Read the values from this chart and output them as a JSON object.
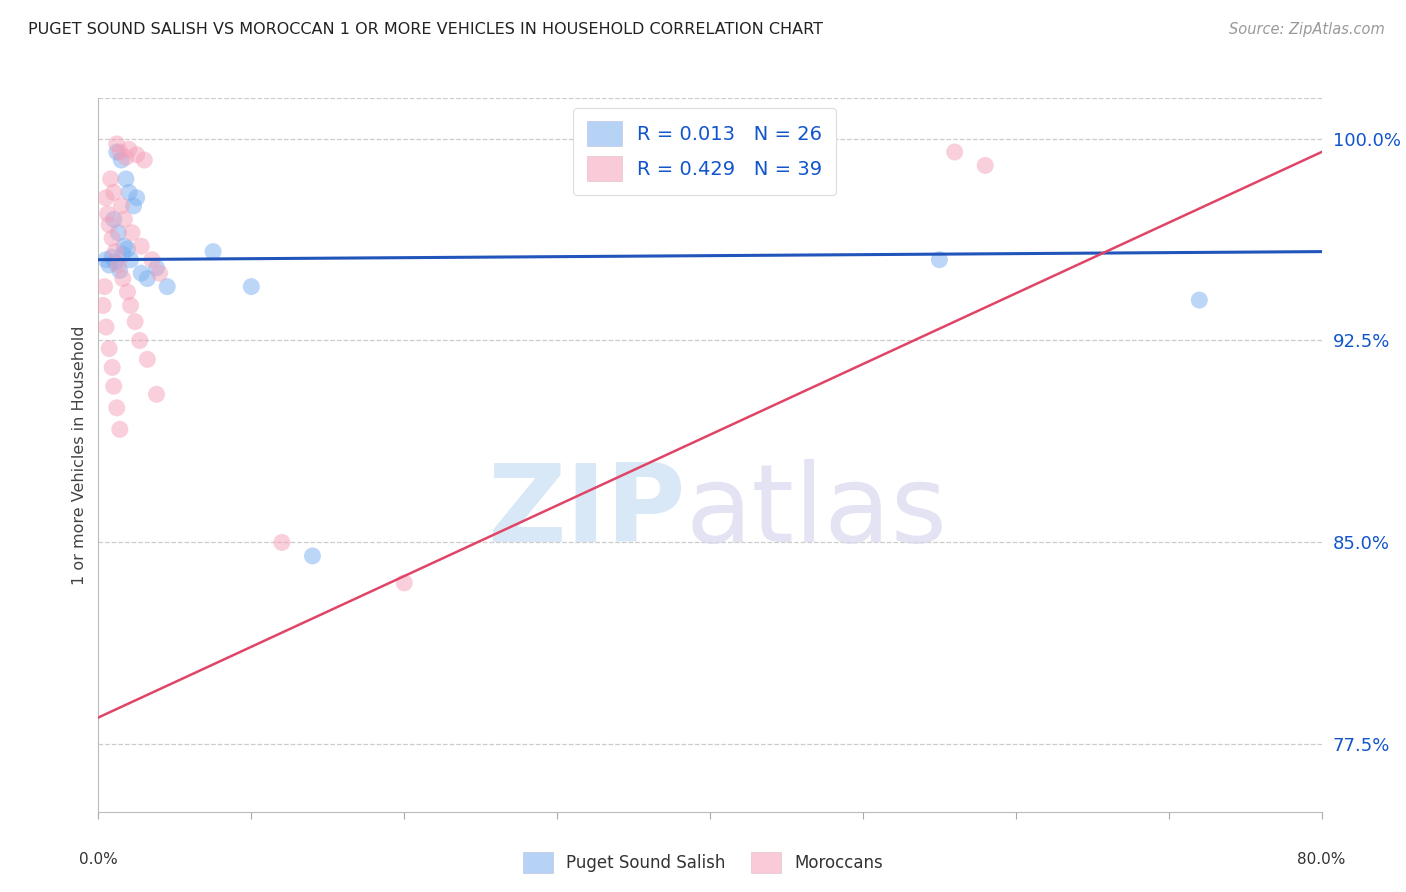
{
  "title": "PUGET SOUND SALISH VS MOROCCAN 1 OR MORE VEHICLES IN HOUSEHOLD CORRELATION CHART",
  "source": "Source: ZipAtlas.com",
  "ylabel": "1 or more Vehicles in Household",
  "xlim": [
    0.0,
    80.0
  ],
  "ylim": [
    75.0,
    101.5
  ],
  "yticks": [
    77.5,
    85.0,
    92.5,
    100.0
  ],
  "ytick_labels": [
    "77.5%",
    "85.0%",
    "92.5%",
    "100.0%"
  ],
  "background_color": "#ffffff",
  "grid_color": "#cccccc",
  "blue_color": "#7aaff0",
  "pink_color": "#f5a0b8",
  "blue_line_color": "#2255bb",
  "pink_line_color": "#e04466",
  "R_blue": 0.013,
  "N_blue": 26,
  "R_pink": 0.429,
  "N_pink": 39,
  "legend_text_color": "#1155cc",
  "blue_scatter_x": [
    1.2,
    1.5,
    1.8,
    2.0,
    2.3,
    2.5,
    1.0,
    1.3,
    1.7,
    2.1,
    2.8,
    3.2,
    3.8,
    4.5,
    7.5,
    10.0,
    0.5,
    0.7,
    0.9,
    1.1,
    1.4,
    1.6,
    1.9,
    55.0,
    72.0,
    14.0
  ],
  "blue_scatter_y": [
    99.5,
    99.2,
    98.5,
    98.0,
    97.5,
    97.8,
    97.0,
    96.5,
    96.0,
    95.5,
    95.0,
    94.8,
    95.2,
    94.5,
    95.8,
    94.5,
    95.5,
    95.3,
    95.6,
    95.4,
    95.1,
    95.7,
    95.9,
    95.5,
    94.0,
    84.5
  ],
  "pink_scatter_x": [
    1.2,
    1.4,
    1.8,
    2.0,
    2.5,
    3.0,
    0.8,
    1.0,
    1.5,
    1.7,
    2.2,
    2.8,
    3.5,
    4.0,
    0.5,
    0.6,
    0.7,
    0.9,
    1.1,
    1.3,
    1.6,
    1.9,
    2.1,
    2.4,
    2.7,
    3.2,
    3.8,
    0.4,
    0.3,
    0.5,
    0.7,
    0.9,
    1.0,
    1.2,
    1.4,
    56.0,
    58.0,
    12.0,
    20.0
  ],
  "pink_scatter_y": [
    99.8,
    99.5,
    99.3,
    99.6,
    99.4,
    99.2,
    98.5,
    98.0,
    97.5,
    97.0,
    96.5,
    96.0,
    95.5,
    95.0,
    97.8,
    97.2,
    96.8,
    96.3,
    95.8,
    95.3,
    94.8,
    94.3,
    93.8,
    93.2,
    92.5,
    91.8,
    90.5,
    94.5,
    93.8,
    93.0,
    92.2,
    91.5,
    90.8,
    90.0,
    89.2,
    99.5,
    99.0,
    85.0,
    83.5
  ],
  "blue_line_x": [
    0.0,
    80.0
  ],
  "blue_line_y": [
    95.5,
    95.8
  ],
  "pink_line_x": [
    0.0,
    80.0
  ],
  "pink_line_y": [
    78.5,
    99.5
  ]
}
